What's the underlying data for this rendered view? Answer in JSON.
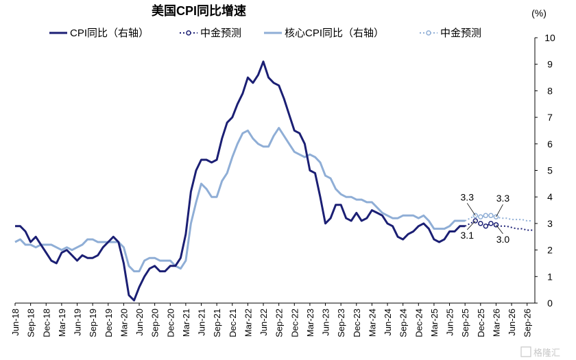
{
  "chart_data": {
    "type": "line",
    "title": "美国CPI同比增速",
    "unit": "(%)",
    "ylim": [
      0,
      10
    ],
    "y_ticks": [
      "0",
      "1",
      "2",
      "3",
      "4",
      "5",
      "6",
      "7",
      "8",
      "9",
      "10"
    ],
    "y_axis_side": "right",
    "x_ticks": [
      "Jun-18",
      "Sep-18",
      "Dec-18",
      "Mar-19",
      "Jun-19",
      "Sep-19",
      "Dec-19",
      "Mar-20",
      "Jun-20",
      "Sep-20",
      "Dec-20",
      "Mar-21",
      "Jun-21",
      "Sep-21",
      "Dec-21",
      "Mar-22",
      "Jun-22",
      "Sep-22",
      "Dec-22",
      "Mar-23",
      "Jun-23",
      "Sep-23",
      "Dec-23",
      "Mar-24",
      "Jun-24",
      "Sep-24",
      "Dec-24",
      "Mar-25",
      "Jun-25",
      "Sep-25",
      "Dec-25",
      "Mar-26",
      "Jun-26",
      "Sep-26"
    ],
    "grid": false,
    "legend_position": "top",
    "colors": {
      "cpi": "#1b1f74",
      "core": "#8faed6"
    },
    "series": [
      {
        "name": "CPI同比（右轴）",
        "color": "#1b1f74",
        "start": "2018-06",
        "values": [
          2.9,
          2.9,
          2.7,
          2.3,
          2.5,
          2.2,
          1.9,
          1.6,
          1.5,
          1.9,
          2.0,
          1.8,
          1.6,
          1.8,
          1.7,
          1.7,
          1.8,
          2.1,
          2.3,
          2.5,
          2.3,
          1.5,
          0.3,
          0.1,
          0.6,
          1.0,
          1.3,
          1.4,
          1.2,
          1.2,
          1.4,
          1.4,
          1.7,
          2.6,
          4.2,
          5.0,
          5.4,
          5.4,
          5.3,
          5.4,
          6.2,
          6.8,
          7.0,
          7.5,
          7.9,
          8.5,
          8.3,
          8.6,
          9.1,
          8.5,
          8.3,
          8.2,
          7.7,
          7.1,
          6.5,
          6.4,
          6.0,
          5.0,
          4.9,
          4.0,
          3.0,
          3.2,
          3.7,
          3.7,
          3.2,
          3.1,
          3.4,
          3.1,
          3.2,
          3.5,
          3.4,
          3.3,
          3.0,
          2.9,
          2.5,
          2.4,
          2.6,
          2.7,
          2.9,
          3.0,
          2.8,
          2.4,
          2.3,
          2.4,
          2.7,
          2.7,
          2.9,
          2.9
        ]
      },
      {
        "name": "中金预测",
        "color": "#1b1f74",
        "start": "2025-11",
        "values": [
          3.1,
          3.0,
          2.9,
          3.0,
          2.95,
          2.9,
          2.9,
          2.85,
          2.8,
          2.8,
          2.75,
          2.75
        ],
        "labels": [
          {
            "month": "2025-11",
            "text": "3.1"
          },
          {
            "month": "2026-03",
            "text": "3.0"
          }
        ]
      },
      {
        "name": "核心CPI同比（右轴）",
        "color": "#8faed6",
        "start": "2018-06",
        "values": [
          2.3,
          2.4,
          2.2,
          2.2,
          2.1,
          2.2,
          2.2,
          2.2,
          2.1,
          2.0,
          2.1,
          2.0,
          2.1,
          2.2,
          2.4,
          2.4,
          2.3,
          2.3,
          2.3,
          2.3,
          2.3,
          2.1,
          1.4,
          1.2,
          1.2,
          1.6,
          1.7,
          1.7,
          1.6,
          1.6,
          1.6,
          1.4,
          1.3,
          1.6,
          3.0,
          3.8,
          4.5,
          4.3,
          4.0,
          4.0,
          4.6,
          4.9,
          5.5,
          6.0,
          6.4,
          6.5,
          6.2,
          6.0,
          5.9,
          5.9,
          6.3,
          6.6,
          6.3,
          6.0,
          5.7,
          5.6,
          5.5,
          5.6,
          5.5,
          5.3,
          4.8,
          4.7,
          4.3,
          4.1,
          4.0,
          4.0,
          3.9,
          3.9,
          3.8,
          3.8,
          3.6,
          3.4,
          3.3,
          3.2,
          3.2,
          3.3,
          3.3,
          3.3,
          3.2,
          3.3,
          3.1,
          2.8,
          2.8,
          2.8,
          2.9,
          3.1,
          3.1,
          3.1
        ]
      },
      {
        "name": "中金预测",
        "color": "#8faed6",
        "start": "2025-11",
        "values": [
          3.3,
          3.25,
          3.3,
          3.3,
          3.25,
          3.2,
          3.2,
          3.15,
          3.15,
          3.15,
          3.1,
          3.1
        ],
        "labels": [
          {
            "month": "2025-11",
            "text": "3.3"
          },
          {
            "month": "2026-03",
            "text": "3.3"
          }
        ]
      }
    ]
  },
  "watermark": "格隆汇"
}
